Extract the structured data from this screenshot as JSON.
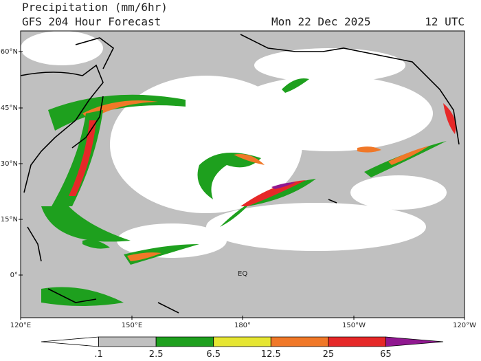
{
  "header": {
    "title": "Precipitation (mm/6hr)",
    "subtitle": "GFS 204 Hour Forecast",
    "date": "Mon 22 Dec 2025",
    "time": "12 UTC"
  },
  "lat_labels": [
    "60°N",
    "45°N",
    "30°N",
    "15°N",
    "0°"
  ],
  "lon_labels": [
    "120°E",
    "150°E",
    "180°",
    "150°W",
    "120°W"
  ],
  "map_labels": [
    "EQ"
  ],
  "colorbar": {
    "labels": [
      ".1",
      "2.5",
      "6.5",
      "12.5",
      "25",
      "65"
    ],
    "colors": [
      "#ffffff",
      "#c0c0c0",
      "#1ea01e",
      "#e6e632",
      "#f07828",
      "#e62828",
      "#901890"
    ]
  }
}
